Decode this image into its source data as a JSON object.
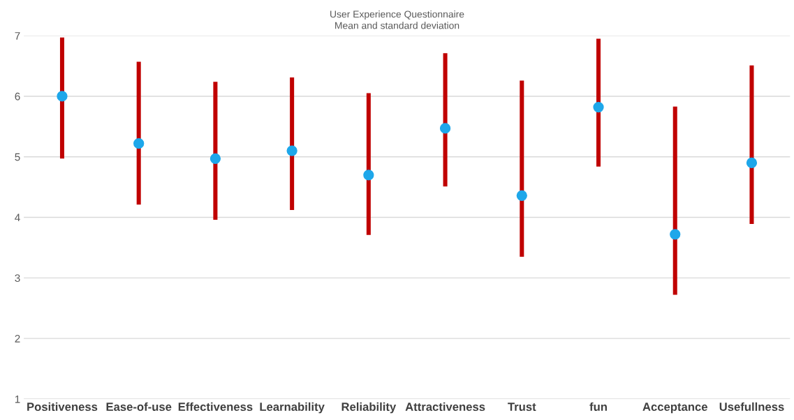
{
  "chart_data": {
    "type": "scatter",
    "title": "User Experience Questionnaire",
    "subtitle": "Mean and standard deviation",
    "categories": [
      "Positiveness",
      "Ease-of-use",
      "Effectiveness",
      "Learnability",
      "Reliability",
      "Attractiveness",
      "Trust",
      "fun",
      "Acceptance",
      "Usefullness"
    ],
    "series": [
      {
        "type": "bar",
        "color": "#c00000",
        "base": [
          4.97,
          4.21,
          3.96,
          4.12,
          3.71,
          4.51,
          3.35,
          4.84,
          2.72,
          3.89
        ],
        "values": [
          2.0,
          2.36,
          2.28,
          2.19,
          2.34,
          2.2,
          2.91,
          2.11,
          3.11,
          2.62
        ]
      },
      {
        "color": "#1ea7ea",
        "values": [
          6.0,
          5.22,
          4.97,
          5.1,
          4.7,
          5.47,
          4.36,
          5.82,
          3.72,
          4.9
        ]
      }
    ],
    "ylim": [
      1,
      7
    ],
    "yticks": [
      1,
      2,
      3,
      4,
      5,
      6,
      7
    ],
    "grid": "y",
    "marker": "circle"
  }
}
